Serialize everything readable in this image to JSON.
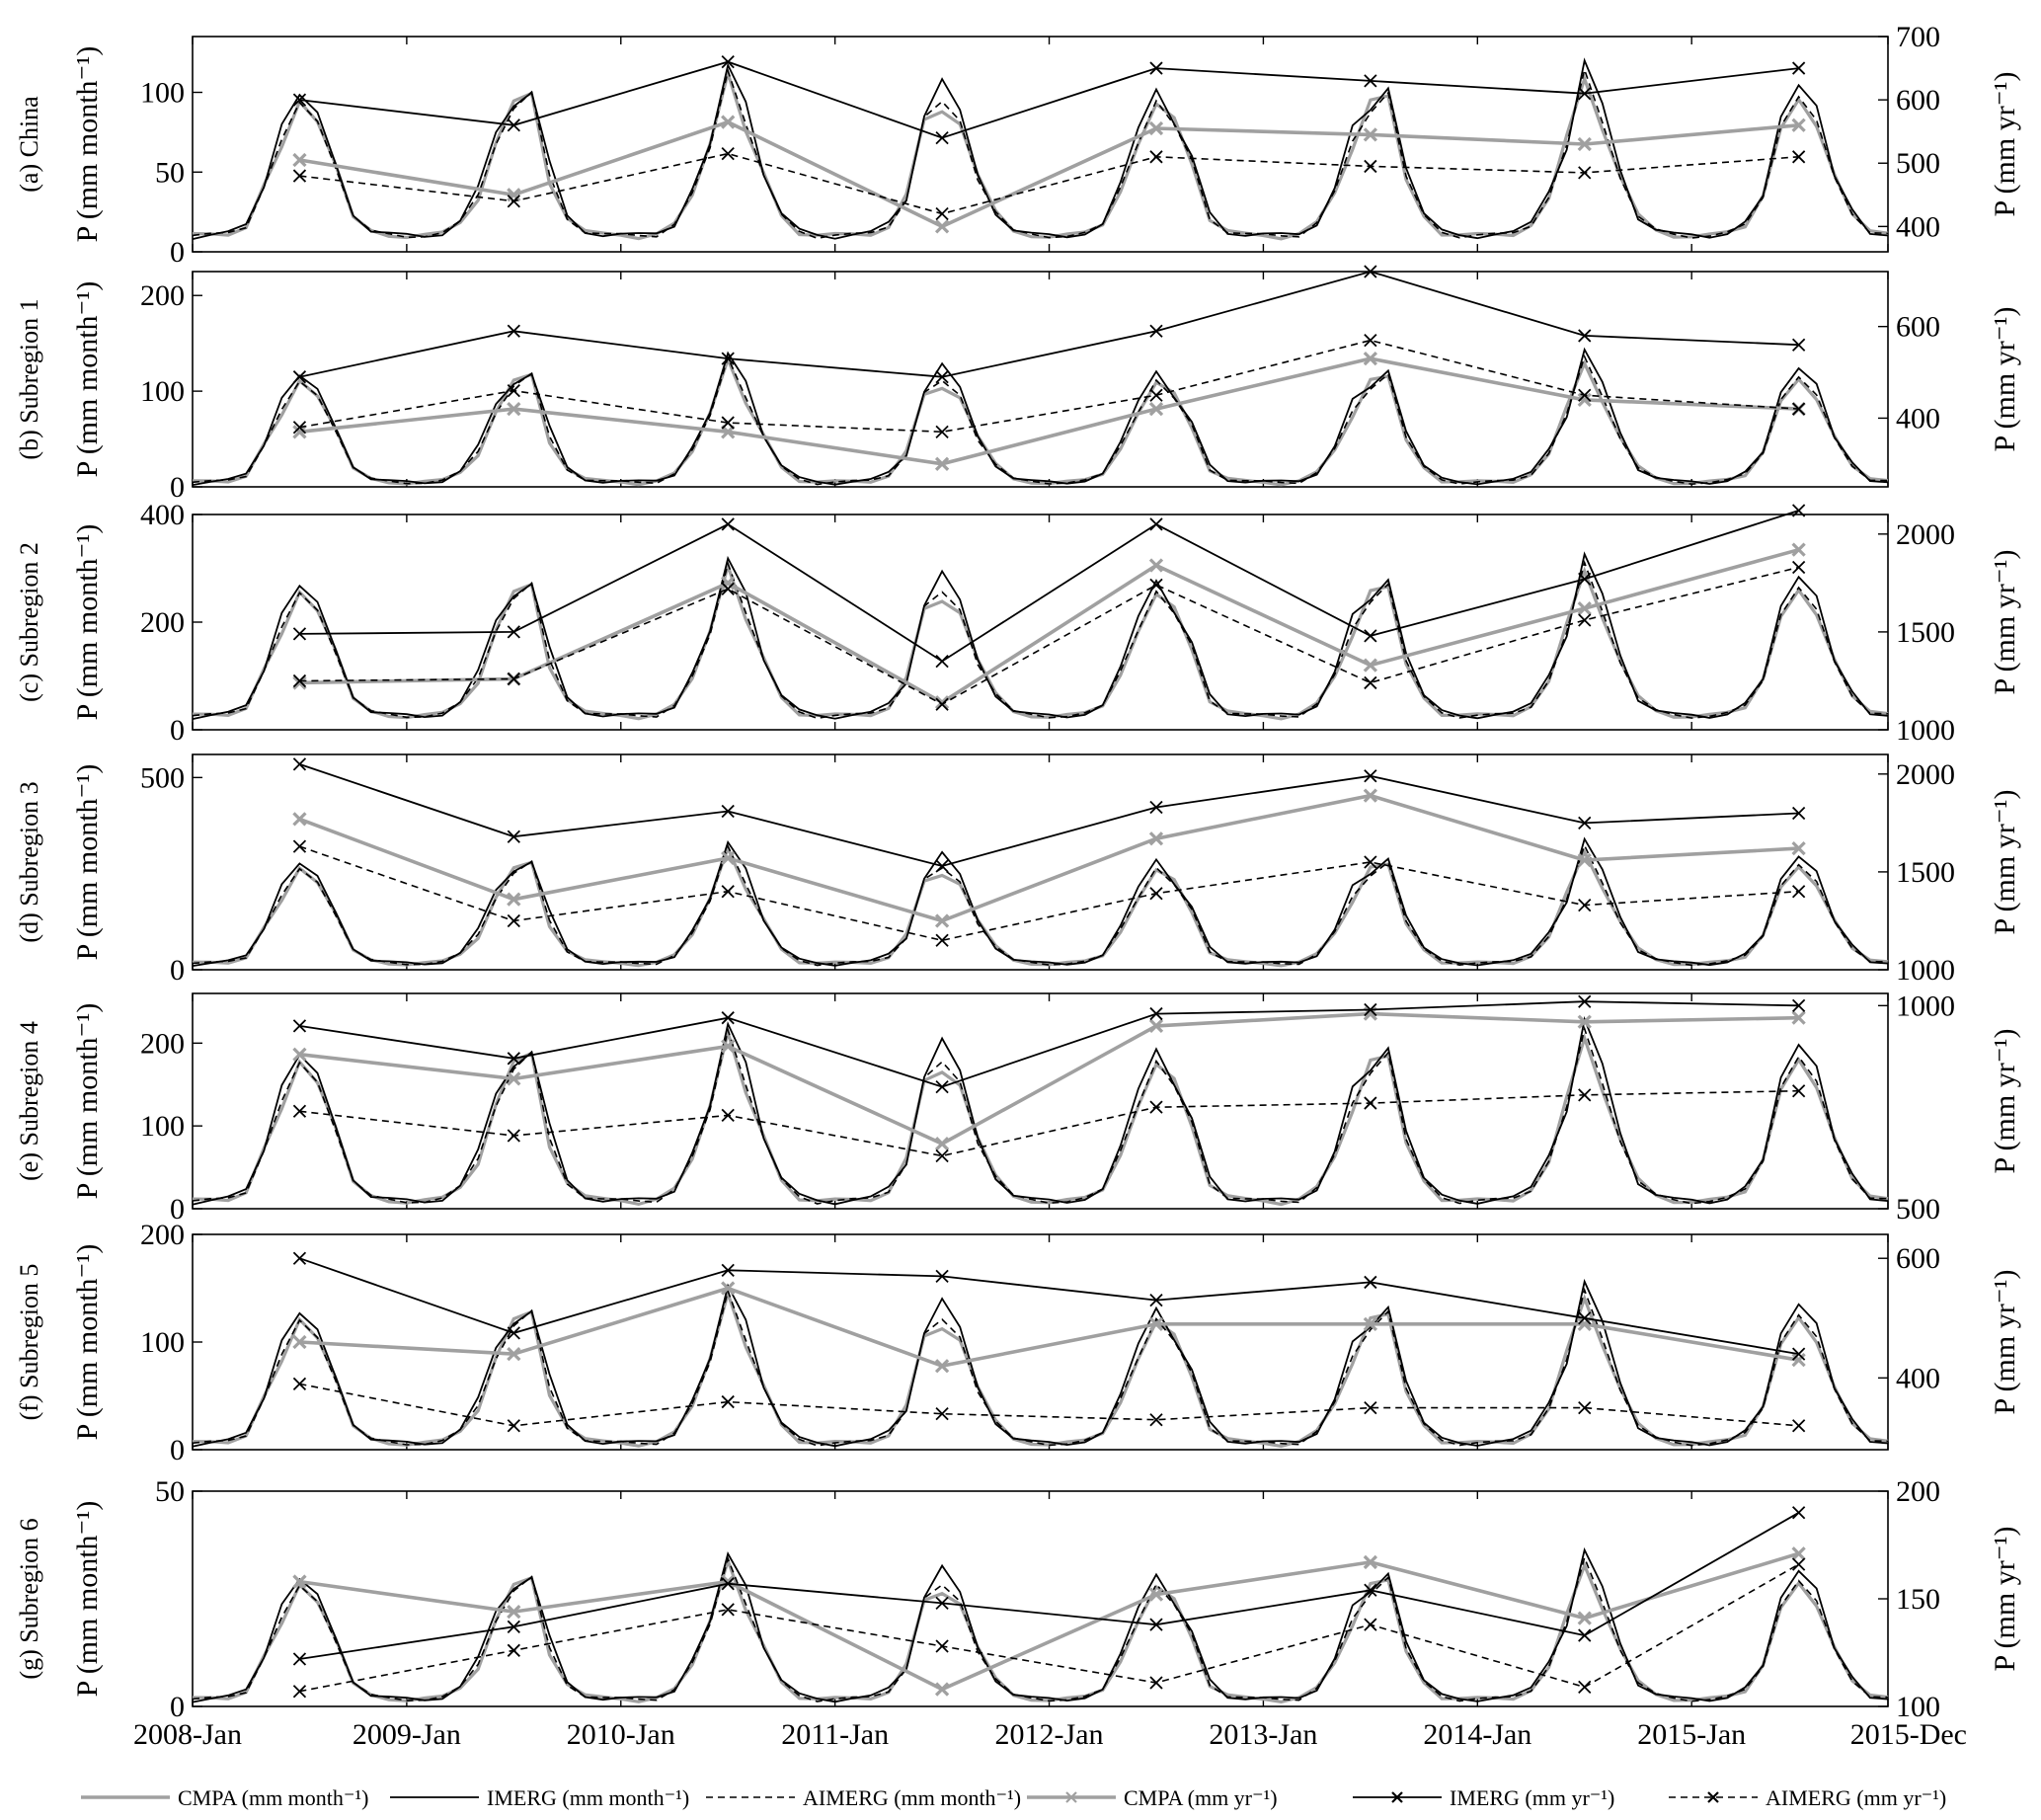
{
  "colors": {
    "cmpa": "#a0a0a0",
    "imerg": "#000000",
    "aimerg": "#000000"
  },
  "chart_data": {
    "type": "line",
    "x_tick_labels": [
      "2008-Jan",
      "2009-Jan",
      "2010-Jan",
      "2011-Jan",
      "2012-Jan",
      "2013-Jan",
      "2014-Jan",
      "2015-Jan",
      "2015-Dec"
    ],
    "x_tick_months": [
      0,
      12,
      24,
      36,
      48,
      60,
      72,
      84,
      95
    ],
    "xlim": [
      0,
      95
    ],
    "annual_months": [
      6,
      18,
      30,
      42,
      54,
      66,
      78,
      90
    ],
    "legend": {
      "placement": "bottom",
      "entries": [
        "CMPA (mm month⁻¹)",
        "IMERG (mm month⁻¹)",
        "AIMERG (mm month⁻¹)",
        "CMPA (mm yr⁻¹)",
        "IMERG (mm yr⁻¹)",
        "AIMERG (mm yr⁻¹)"
      ]
    },
    "left_axis_title": "P (mm month⁻¹)",
    "right_axis_title": "P (mm yr⁻¹)",
    "panels": [
      {
        "label": "(a) China",
        "ylim_left": [
          0,
          135
        ],
        "yticks_left": [
          0,
          50,
          100
        ],
        "ylim_right": [
          360,
          700
        ],
        "yticks_right": [
          400,
          500,
          600,
          700
        ],
        "monthly_amp": 95,
        "monthly_base": 8,
        "annual": {
          "cmpa": [
            505,
            450,
            565,
            400,
            555,
            545,
            530,
            560
          ],
          "imerg": [
            600,
            560,
            660,
            540,
            650,
            630,
            610,
            650
          ],
          "aimerg": [
            480,
            440,
            515,
            420,
            510,
            495,
            485,
            510
          ]
        }
      },
      {
        "label": "(b) Subregion 1",
        "ylim_left": [
          0,
          225
        ],
        "yticks_left": [
          0,
          100,
          200
        ],
        "ylim_right": [
          250,
          720
        ],
        "yticks_right": [
          400,
          600
        ],
        "monthly_amp": 120,
        "monthly_base": 2,
        "annual": {
          "cmpa": [
            370,
            420,
            370,
            300,
            420,
            530,
            440,
            420
          ],
          "imerg": [
            490,
            590,
            530,
            490,
            590,
            720,
            580,
            560
          ],
          "aimerg": [
            380,
            460,
            390,
            370,
            450,
            570,
            450,
            420
          ]
        }
      },
      {
        "label": "(c) Subregion 2",
        "ylim_left": [
          0,
          400
        ],
        "yticks_left": [
          0,
          200,
          400
        ],
        "ylim_right": [
          1000,
          2100
        ],
        "yticks_right": [
          1000,
          1500,
          2000
        ],
        "monthly_amp": 260,
        "monthly_base": 20,
        "annual": {
          "cmpa": [
            1240,
            1260,
            1750,
            1140,
            1840,
            1330,
            1620,
            1920
          ],
          "imerg": [
            1490,
            1500,
            2050,
            1350,
            2050,
            1480,
            1770,
            2120
          ],
          "aimerg": [
            1250,
            1260,
            1720,
            1130,
            1740,
            1240,
            1560,
            1830
          ]
        }
      },
      {
        "label": "(d) Subregion 3",
        "ylim_left": [
          0,
          560
        ],
        "yticks_left": [
          0,
          500
        ],
        "ylim_right": [
          1000,
          2100
        ],
        "yticks_right": [
          1000,
          1500,
          2000
        ],
        "monthly_amp": 280,
        "monthly_base": 10,
        "annual": {
          "cmpa": [
            1770,
            1360,
            1570,
            1250,
            1670,
            1890,
            1560,
            1620
          ],
          "imerg": [
            2050,
            1680,
            1810,
            1530,
            1830,
            1990,
            1750,
            1800
          ],
          "aimerg": [
            1630,
            1250,
            1400,
            1150,
            1390,
            1550,
            1330,
            1400
          ]
        }
      },
      {
        "label": "(e) Subregion 4",
        "ylim_left": [
          0,
          260
        ],
        "yticks_left": [
          0,
          100,
          200
        ],
        "ylim_right": [
          500,
          1030
        ],
        "yticks_right": [
          500,
          1000
        ],
        "monthly_amp": 190,
        "monthly_base": 5,
        "annual": {
          "cmpa": [
            880,
            820,
            900,
            660,
            950,
            980,
            960,
            970
          ],
          "imerg": [
            950,
            870,
            970,
            800,
            980,
            990,
            1010,
            1000
          ],
          "aimerg": [
            740,
            680,
            730,
            630,
            750,
            760,
            780,
            790
          ]
        }
      },
      {
        "label": "(f) Subregion 5",
        "ylim_left": [
          0,
          200
        ],
        "yticks_left": [
          0,
          100,
          200
        ],
        "ylim_right": [
          280,
          640
        ],
        "yticks_right": [
          400,
          600
        ],
        "monthly_amp": 130,
        "monthly_base": 3,
        "annual": {
          "cmpa": [
            460,
            440,
            550,
            420,
            490,
            490,
            490,
            430
          ],
          "imerg": [
            600,
            475,
            580,
            570,
            530,
            560,
            500,
            440
          ],
          "aimerg": [
            390,
            320,
            360,
            340,
            330,
            350,
            350,
            320
          ]
        }
      },
      {
        "label": "(g) Subregion 6",
        "ylim_left": [
          0,
          50
        ],
        "yticks_left": [
          0,
          50
        ],
        "ylim_right": [
          100,
          200
        ],
        "yticks_right": [
          100,
          150,
          200
        ],
        "monthly_amp": 30,
        "monthly_base": 1,
        "annual": {
          "cmpa": [
            158,
            144,
            158,
            108,
            152,
            167,
            141,
            171
          ],
          "imerg": [
            122,
            137,
            157,
            148,
            138,
            154,
            133,
            190
          ],
          "aimerg": [
            107,
            126,
            145,
            128,
            111,
            138,
            109,
            166
          ]
        }
      }
    ]
  }
}
